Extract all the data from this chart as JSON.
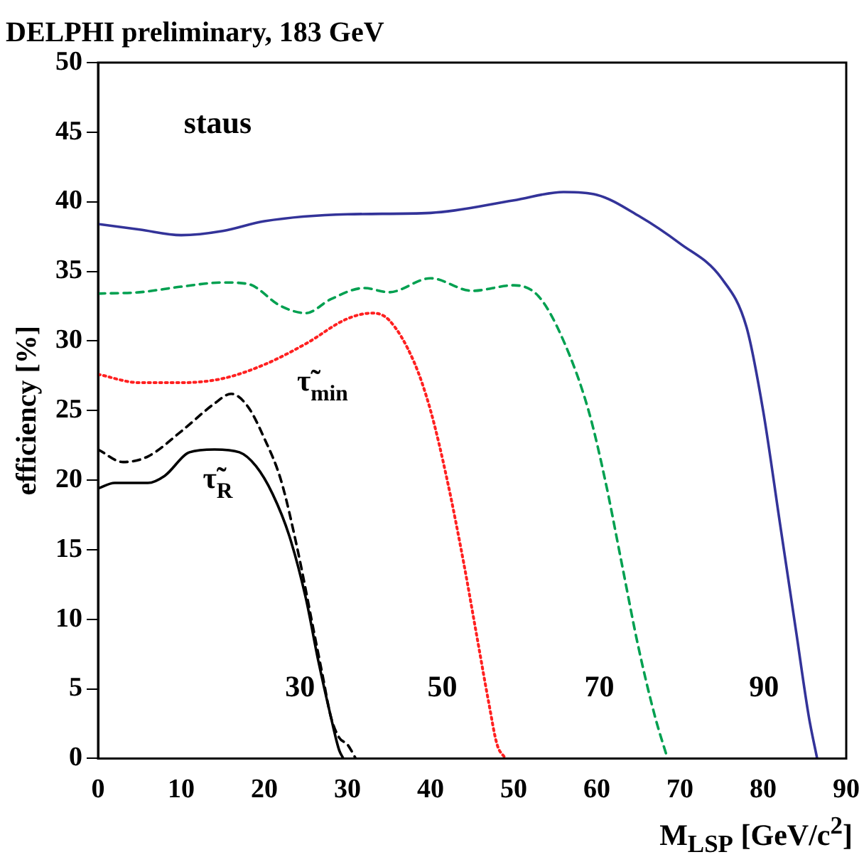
{
  "chart_data": {
    "type": "line",
    "title": "DELPHI preliminary, 183 GeV",
    "xlabel": "M$_{LSP}$ [GeV/c$^{2}$]",
    "ylabel": "efficiency [%]",
    "xlim": [
      0,
      90
    ],
    "xticks": [
      0,
      10,
      20,
      30,
      40,
      50,
      60,
      70,
      80,
      90
    ],
    "ylim": [
      0,
      50
    ],
    "yticks": [
      0,
      5,
      10,
      15,
      20,
      25,
      30,
      35,
      40,
      45,
      50
    ],
    "grid": false,
    "legend": false,
    "marker": "none",
    "series": [
      {
        "color": "#333399",
        "line_style": "solid",
        "x": [
          0,
          5,
          10,
          15,
          20,
          30,
          40,
          50,
          56,
          60,
          65,
          70,
          75,
          78,
          80,
          82,
          84,
          85.5,
          86.5
        ],
        "values": [
          38.4,
          38,
          37.6,
          37.9,
          38.6,
          39.1,
          39.2,
          40.1,
          40.7,
          40.5,
          39,
          37,
          34.5,
          31,
          25,
          17,
          9,
          3,
          0
        ]
      },
      {
        "color": "#00a050",
        "line_style": "dashed",
        "x": [
          0,
          5,
          10,
          15,
          18,
          22,
          25,
          28,
          32,
          35,
          40,
          45,
          50,
          53,
          56,
          59,
          61,
          63,
          65,
          67,
          68.5
        ],
        "values": [
          33.4,
          33.5,
          33.9,
          34.2,
          34.1,
          32.5,
          32,
          33,
          33.8,
          33.5,
          34.5,
          33.6,
          34,
          33.2,
          30,
          25,
          20,
          14,
          8,
          3,
          0
        ]
      },
      {
        "color": "#ff2020",
        "line_style": "dotted",
        "x": [
          0,
          5,
          10,
          15,
          20,
          25,
          30,
          33,
          35,
          38,
          40,
          42,
          44,
          45.5,
          47,
          48,
          49
        ],
        "values": [
          27.6,
          27,
          27,
          27.3,
          28.3,
          29.8,
          31.6,
          32,
          31.5,
          28.5,
          25,
          20,
          14,
          9,
          4,
          1,
          0
        ]
      },
      {
        "color": "#000000",
        "line_style": "dashed",
        "x": [
          0,
          3,
          6,
          10,
          14,
          16,
          18,
          20,
          22,
          24,
          26,
          27,
          28,
          29,
          30,
          31
        ],
        "values": [
          22.2,
          21.3,
          21.7,
          23.5,
          25.5,
          26.2,
          25.3,
          23,
          20,
          15,
          9,
          6,
          3,
          1.5,
          1,
          0
        ]
      },
      {
        "color": "#000000",
        "line_style": "solid",
        "x": [
          0,
          2,
          6,
          8,
          11,
          14,
          17,
          19,
          21,
          23,
          25,
          26.5,
          28,
          29,
          29.5
        ],
        "values": [
          19.4,
          19.8,
          19.8,
          20.3,
          22,
          22.2,
          22,
          21,
          19,
          16,
          11.5,
          7,
          3,
          0.6,
          0
        ]
      }
    ],
    "annotations": [
      "staus",
      "τ̃$_{min}$",
      "τ̃$_{R}$",
      "30",
      "50",
      "70",
      "90"
    ]
  }
}
